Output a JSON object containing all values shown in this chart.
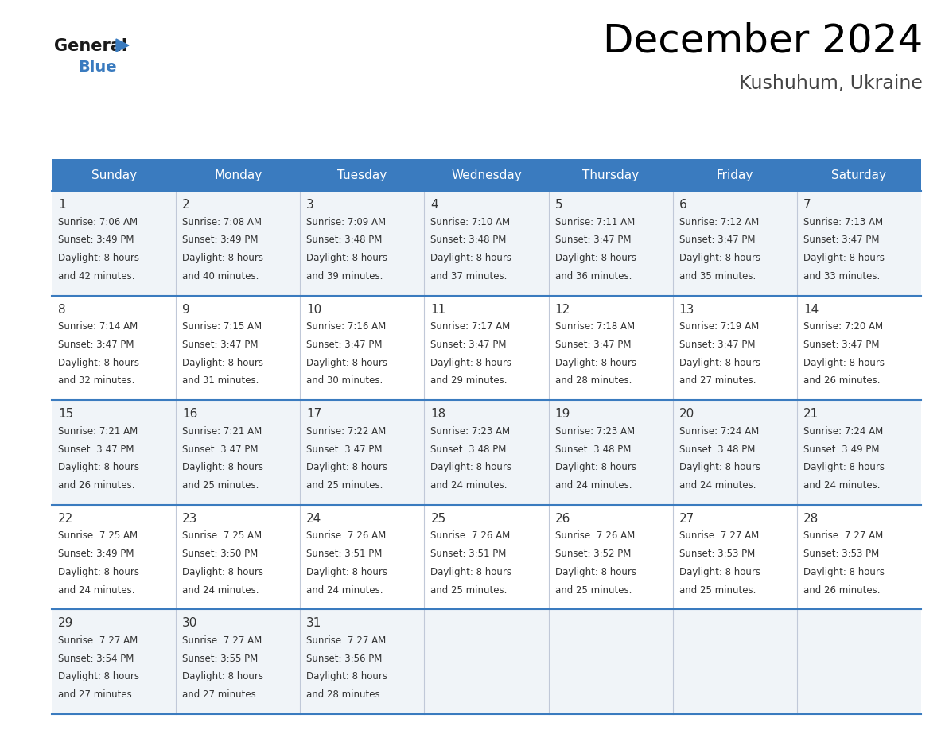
{
  "title": "December 2024",
  "subtitle": "Kushuhum, Ukraine",
  "header_bg": "#3a7bbf",
  "header_text_color": "#ffffff",
  "cell_bg_light": "#f0f4f8",
  "cell_bg_white": "#ffffff",
  "border_color": "#3a7bbf",
  "text_color": "#333333",
  "days_of_week": [
    "Sunday",
    "Monday",
    "Tuesday",
    "Wednesday",
    "Thursday",
    "Friday",
    "Saturday"
  ],
  "calendar_data": [
    [
      {
        "day": "1",
        "sunrise": "7:06 AM",
        "sunset": "3:49 PM",
        "minutes": "42"
      },
      {
        "day": "2",
        "sunrise": "7:08 AM",
        "sunset": "3:49 PM",
        "minutes": "40"
      },
      {
        "day": "3",
        "sunrise": "7:09 AM",
        "sunset": "3:48 PM",
        "minutes": "39"
      },
      {
        "day": "4",
        "sunrise": "7:10 AM",
        "sunset": "3:48 PM",
        "minutes": "37"
      },
      {
        "day": "5",
        "sunrise": "7:11 AM",
        "sunset": "3:47 PM",
        "minutes": "36"
      },
      {
        "day": "6",
        "sunrise": "7:12 AM",
        "sunset": "3:47 PM",
        "minutes": "35"
      },
      {
        "day": "7",
        "sunrise": "7:13 AM",
        "sunset": "3:47 PM",
        "minutes": "33"
      }
    ],
    [
      {
        "day": "8",
        "sunrise": "7:14 AM",
        "sunset": "3:47 PM",
        "minutes": "32"
      },
      {
        "day": "9",
        "sunrise": "7:15 AM",
        "sunset": "3:47 PM",
        "minutes": "31"
      },
      {
        "day": "10",
        "sunrise": "7:16 AM",
        "sunset": "3:47 PM",
        "minutes": "30"
      },
      {
        "day": "11",
        "sunrise": "7:17 AM",
        "sunset": "3:47 PM",
        "minutes": "29"
      },
      {
        "day": "12",
        "sunrise": "7:18 AM",
        "sunset": "3:47 PM",
        "minutes": "28"
      },
      {
        "day": "13",
        "sunrise": "7:19 AM",
        "sunset": "3:47 PM",
        "minutes": "27"
      },
      {
        "day": "14",
        "sunrise": "7:20 AM",
        "sunset": "3:47 PM",
        "minutes": "26"
      }
    ],
    [
      {
        "day": "15",
        "sunrise": "7:21 AM",
        "sunset": "3:47 PM",
        "minutes": "26"
      },
      {
        "day": "16",
        "sunrise": "7:21 AM",
        "sunset": "3:47 PM",
        "minutes": "25"
      },
      {
        "day": "17",
        "sunrise": "7:22 AM",
        "sunset": "3:47 PM",
        "minutes": "25"
      },
      {
        "day": "18",
        "sunrise": "7:23 AM",
        "sunset": "3:48 PM",
        "minutes": "24"
      },
      {
        "day": "19",
        "sunrise": "7:23 AM",
        "sunset": "3:48 PM",
        "minutes": "24"
      },
      {
        "day": "20",
        "sunrise": "7:24 AM",
        "sunset": "3:48 PM",
        "minutes": "24"
      },
      {
        "day": "21",
        "sunrise": "7:24 AM",
        "sunset": "3:49 PM",
        "minutes": "24"
      }
    ],
    [
      {
        "day": "22",
        "sunrise": "7:25 AM",
        "sunset": "3:49 PM",
        "minutes": "24"
      },
      {
        "day": "23",
        "sunrise": "7:25 AM",
        "sunset": "3:50 PM",
        "minutes": "24"
      },
      {
        "day": "24",
        "sunrise": "7:26 AM",
        "sunset": "3:51 PM",
        "minutes": "24"
      },
      {
        "day": "25",
        "sunrise": "7:26 AM",
        "sunset": "3:51 PM",
        "minutes": "25"
      },
      {
        "day": "26",
        "sunrise": "7:26 AM",
        "sunset": "3:52 PM",
        "minutes": "25"
      },
      {
        "day": "27",
        "sunrise": "7:27 AM",
        "sunset": "3:53 PM",
        "minutes": "25"
      },
      {
        "day": "28",
        "sunrise": "7:27 AM",
        "sunset": "3:53 PM",
        "minutes": "26"
      }
    ],
    [
      {
        "day": "29",
        "sunrise": "7:27 AM",
        "sunset": "3:54 PM",
        "minutes": "27"
      },
      {
        "day": "30",
        "sunrise": "7:27 AM",
        "sunset": "3:55 PM",
        "minutes": "27"
      },
      {
        "day": "31",
        "sunrise": "7:27 AM",
        "sunset": "3:56 PM",
        "minutes": "28"
      },
      null,
      null,
      null,
      null
    ]
  ]
}
